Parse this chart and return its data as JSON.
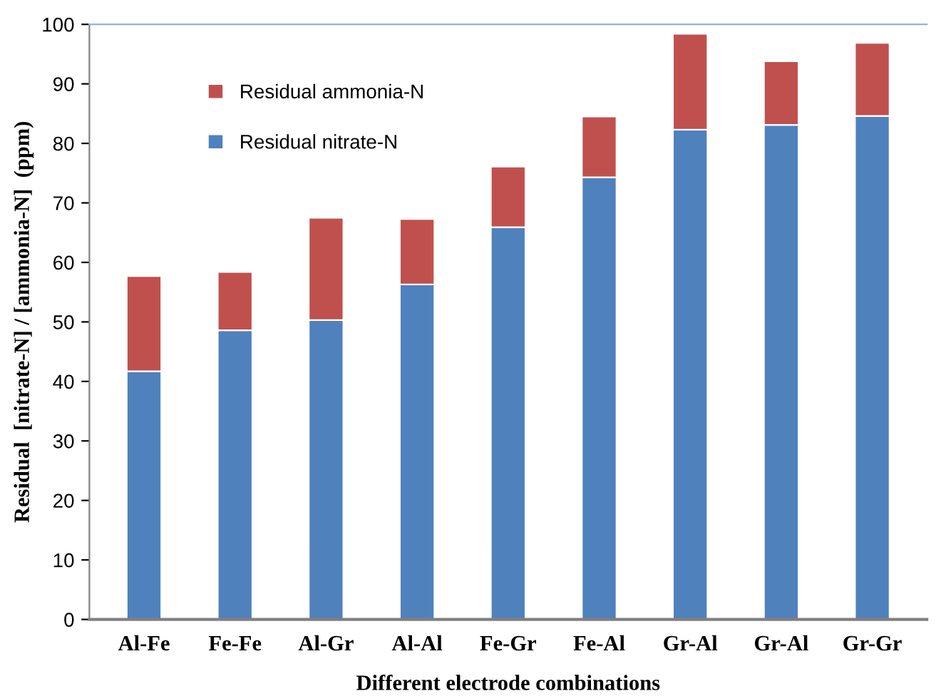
{
  "chart_data": {
    "type": "bar",
    "stacked": true,
    "xlabel": "Different electrode combinations",
    "ylabel": "Residual  [nitrate-N] / [ammonia-N]  (ppm)",
    "categories": [
      "Al-Fe",
      "Fe-Fe",
      "Al-Gr",
      "Al-Al",
      "Fe-Gr",
      "Fe-Al",
      "Gr-Al",
      "Gr-Al",
      "Gr-Gr"
    ],
    "series": [
      {
        "name": "Residual nitrate-N",
        "color": "#4f81bd",
        "values": [
          41.7,
          48.6,
          50.3,
          56.3,
          65.9,
          74.3,
          82.3,
          83.1,
          84.6
        ]
      },
      {
        "name": "Residual ammonia-N",
        "color": "#c0504d",
        "values": [
          16.0,
          9.8,
          17.2,
          11.0,
          10.2,
          10.2,
          16.1,
          10.7,
          12.3
        ]
      }
    ],
    "ylim": [
      0,
      100
    ],
    "yticks": [
      0,
      10,
      20,
      30,
      40,
      50,
      60,
      70,
      80,
      90,
      100
    ],
    "grid": false,
    "legend": "top left"
  }
}
